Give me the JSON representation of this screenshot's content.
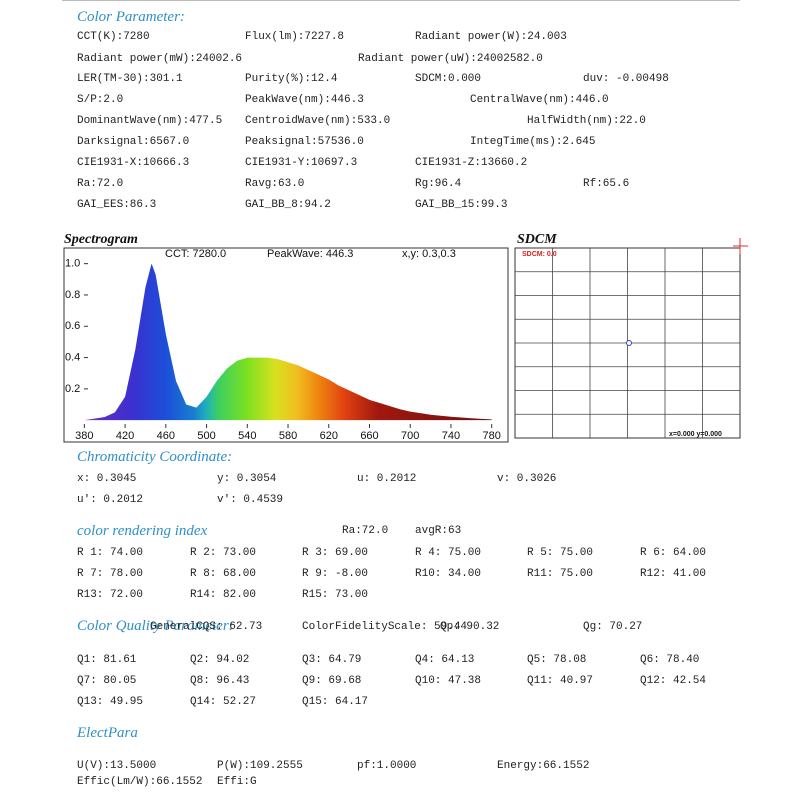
{
  "color_parameter": {
    "title": "Color Parameter:",
    "rows": [
      [
        "CCT(K):7280",
        "Flux(lm):7227.8",
        "Radiant power(W):24.003"
      ],
      [
        "Radiant power(mW):24002.6",
        "Radiant power(uW):24002582.0"
      ],
      [
        "LER(TM-30):301.1",
        "Purity(%):12.4",
        "SDCM:0.000",
        "duv: -0.00498"
      ],
      [
        "S/P:2.0",
        "PeakWave(nm):446.3",
        "CentralWave(nm):446.0"
      ],
      [
        "DominantWave(nm):477.5",
        "CentroidWave(nm):533.0",
        "HalfWidth(nm):22.0"
      ],
      [
        "Darksignal:6567.0",
        "Peaksignal:57536.0",
        "IntegTime(ms):2.645"
      ],
      [
        "CIE1931-X:10666.3",
        "CIE1931-Y:10697.3",
        "CIE1931-Z:13660.2"
      ],
      [
        "Ra:72.0",
        "Ravg:63.0",
        "Rg:96.4",
        "Rf:65.6"
      ],
      [
        "GAI_EES:86.3",
        "GAI_BB_8:94.2",
        "GAI_BB_15:99.3"
      ]
    ]
  },
  "chart_data": {
    "type": "area",
    "title": "Spectrogram",
    "annotations": [
      "CCT: 7280.0",
      "PeakWave: 446.3",
      "x,y: 0.3,0.3"
    ],
    "x": [
      380,
      390,
      400,
      410,
      420,
      430,
      440,
      446,
      450,
      460,
      470,
      480,
      490,
      500,
      510,
      520,
      530,
      540,
      550,
      560,
      570,
      580,
      590,
      600,
      610,
      620,
      630,
      640,
      650,
      660,
      670,
      680,
      690,
      700,
      710,
      720,
      730,
      740,
      750,
      760,
      770,
      780
    ],
    "values": [
      0,
      0.01,
      0.02,
      0.05,
      0.15,
      0.45,
      0.85,
      1.0,
      0.93,
      0.55,
      0.25,
      0.1,
      0.08,
      0.15,
      0.25,
      0.33,
      0.38,
      0.4,
      0.4,
      0.4,
      0.39,
      0.37,
      0.35,
      0.32,
      0.29,
      0.26,
      0.22,
      0.19,
      0.16,
      0.13,
      0.11,
      0.09,
      0.07,
      0.055,
      0.045,
      0.035,
      0.028,
      0.022,
      0.017,
      0.012,
      0.008,
      0.005
    ],
    "xlim": [
      360,
      796
    ],
    "xticks": [
      380,
      420,
      460,
      500,
      540,
      580,
      620,
      660,
      700,
      740,
      780
    ],
    "ylim": [
      -0.05,
      1.1
    ],
    "yticks": [
      0.2,
      0.4,
      0.6,
      0.8,
      {
        "value": 1,
        "label": "1.0"
      }
    ]
  },
  "sdcm": {
    "title": "SDCM",
    "label": "SDCM: 0.0",
    "coords": "x=0.000 y=0.000"
  },
  "chromaticity": {
    "title": "Chromaticity Coordinate:",
    "rows": [
      [
        "x: 0.3045",
        "y: 0.3054",
        "u: 0.2012",
        "v: 0.3026"
      ],
      [
        "u': 0.2012",
        "v': 0.4539"
      ]
    ]
  },
  "color_rendering": {
    "title": "color rendering index",
    "summary": [
      "Ra:72.0",
      "avgR:63"
    ],
    "rows": [
      [
        "R 1: 74.00",
        "R 2: 73.00",
        "R 3: 69.00",
        "R 4: 75.00",
        "R 5: 75.00",
        "R 6: 64.00"
      ],
      [
        "R 7: 78.00",
        "R 8: 68.00",
        "R 9: -8.00",
        "R10: 34.00",
        "R11: 75.00",
        "R12: 41.00"
      ],
      [
        "R13: 72.00",
        "R14: 82.00",
        "R15: 73.00"
      ]
    ]
  },
  "color_quality": {
    "title": "Color Quality Parameter:",
    "rows": [
      [
        "GeneralCQS: 62.73",
        "ColorFidelityScale: 59.44",
        "Qp: 90.32",
        "Qg: 70.27"
      ],
      [
        "Q1: 81.61",
        "Q2: 94.02",
        "Q3: 64.79",
        "Q4: 64.13",
        "Q5: 78.08",
        "Q6: 78.40"
      ],
      [
        "Q7: 80.05",
        "Q8: 96.43",
        "Q9: 69.68",
        "Q10: 47.38",
        "Q11: 40.97",
        "Q12: 42.54"
      ],
      [
        "Q13: 49.95",
        "Q14: 52.27",
        "Q15: 64.17"
      ]
    ]
  },
  "elect_para": {
    "title": "ElectPara",
    "rows": [
      [
        "U(V):13.5000",
        "P(W):109.2555",
        "pf:1.0000",
        "Energy:66.1552"
      ],
      [
        "Effic(Lm/W):66.1552",
        "Effi:G"
      ]
    ]
  }
}
